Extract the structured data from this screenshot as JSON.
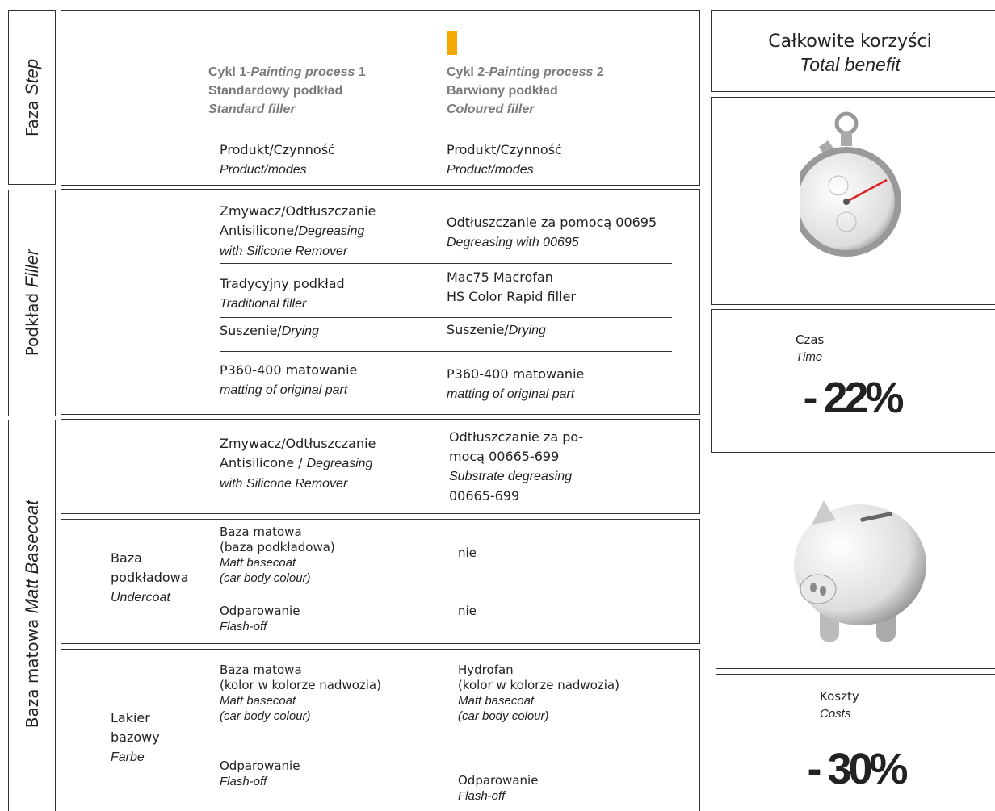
{
  "sections": {
    "step": {
      "pl": "Faza",
      "en": "Step"
    },
    "filler": {
      "pl": "Podkład",
      "en": "Filler"
    },
    "basecoat": {
      "pl": "Baza matowa",
      "en": "Matt Basecoat"
    }
  },
  "header": {
    "cycle1": {
      "lines": [
        [
          "Cykl 1-",
          {
            "text": "Painting process",
            "italic": true
          },
          " 1"
        ],
        [
          "Standardowy podkład"
        ],
        [
          {
            "text": "Standard filler",
            "italic": true
          }
        ]
      ],
      "column": [
        [
          "Produkt/Czynność"
        ],
        [
          {
            "text": "Product/modes",
            "italic": true
          }
        ]
      ]
    },
    "cycle2": {
      "lines": [
        [
          "Cykl 2-",
          {
            "text": "Painting process",
            "italic": true
          },
          " 2"
        ],
        [
          "Barwiony podkład"
        ],
        [
          {
            "text": "Coloured filler",
            "italic": true
          }
        ]
      ],
      "column": [
        [
          "Produkt/Czynność"
        ],
        [
          {
            "text": "Product/modes",
            "italic": true
          }
        ]
      ]
    }
  },
  "filler": {
    "rows": [
      [
        [
          [
            "Zmywacz/Odtłuszczanie"
          ],
          [
            "Antisilicone/",
            {
              "text": "Degreasing",
              "italic": true
            }
          ],
          [
            {
              "text": "with Silicone Remover",
              "italic": true
            }
          ]
        ],
        [
          [
            "Odtłuszczanie za pomocą  00695"
          ],
          [
            {
              "text": "Degreasing with 00695",
              "italic": true
            }
          ]
        ]
      ],
      [
        [
          [
            "Tradycyjny podkład"
          ],
          [
            {
              "text": "Traditional filler",
              "italic": true
            }
          ]
        ],
        [
          [
            "Mac75 Macrofan"
          ],
          [
            "HS Color Rapid filler"
          ]
        ]
      ],
      [
        [
          [
            "Suszenie/",
            {
              "text": "Drying",
              "italic": true
            }
          ]
        ],
        [
          [
            "Suszenie/",
            {
              "text": "Drying",
              "italic": true
            }
          ]
        ]
      ],
      [
        [
          [
            "P360-400 matowanie"
          ],
          [
            {
              "text": "matting of original part",
              "italic": true
            }
          ]
        ],
        [
          [
            "P360-400 matowanie"
          ],
          [
            {
              "text": "matting of original part",
              "italic": true
            }
          ]
        ]
      ]
    ]
  },
  "basecoat": {
    "degreasing": [
      [
        [
          "Zmywacz/Odtłuszczanie"
        ],
        [
          "Antisilicone / ",
          {
            "text": "Degreasing",
            "italic": true
          }
        ],
        [
          {
            "text": "with Silicone Remover",
            "italic": true
          }
        ]
      ],
      [
        [
          "Odtłuszczanie za po-"
        ],
        [
          "mocą 00665-699"
        ],
        [
          {
            "text": "Substrate degreasing",
            "italic": true
          }
        ],
        [
          "00665-699"
        ]
      ]
    ],
    "undercoat": {
      "label": [
        [
          "Baza"
        ],
        [
          "podkładowa"
        ],
        [
          {
            "text": "Undercoat",
            "italic": true
          }
        ]
      ],
      "rows": [
        [
          [
            [
              "Baza matowa"
            ],
            [
              "(baza podkładowa)"
            ],
            [
              {
                "text": "Matt basecoat",
                "italic": true
              }
            ],
            [
              {
                "text": "(car body colour)",
                "italic": true
              }
            ]
          ],
          [
            [
              "nie"
            ]
          ]
        ],
        [
          [
            [
              "Odparowanie"
            ],
            [
              {
                "text": "Flash-off",
                "italic": true
              }
            ]
          ],
          [
            [
              "nie"
            ]
          ]
        ]
      ]
    },
    "farbe": {
      "label": [
        [
          "Lakier"
        ],
        [
          "bazowy"
        ],
        [
          {
            "text": "Farbe",
            "italic": true
          }
        ]
      ],
      "rows": [
        [
          [
            [
              "Baza matowa"
            ],
            [
              "(kolor w kolorze nadwozia)"
            ],
            [
              {
                "text": "Matt basecoat",
                "italic": true
              }
            ],
            [
              {
                "text": "(car body colour)",
                "italic": true
              }
            ]
          ],
          [
            [
              "Hydrofan"
            ],
            [
              "(kolor w kolorze nadwozia)"
            ],
            [
              {
                "text": "Matt basecoat",
                "italic": true
              }
            ],
            [
              {
                "text": "(car body colour)",
                "italic": true
              }
            ]
          ]
        ],
        [
          [
            [
              "Odparowanie"
            ],
            [
              {
                "text": "Flash-off",
                "italic": true
              }
            ]
          ],
          [
            [
              "Odparowanie"
            ],
            [
              {
                "text": "Flash-off",
                "italic": true
              }
            ]
          ]
        ]
      ]
    }
  },
  "benefit": {
    "title": {
      "pl": "Całkowite korzyści",
      "en": "Total benefit"
    },
    "time": {
      "pl": "Czas",
      "en": "Time",
      "result": "- 22%"
    },
    "costs": {
      "pl": "Koszty",
      "en": "Costs",
      "result": "- 30%"
    }
  }
}
